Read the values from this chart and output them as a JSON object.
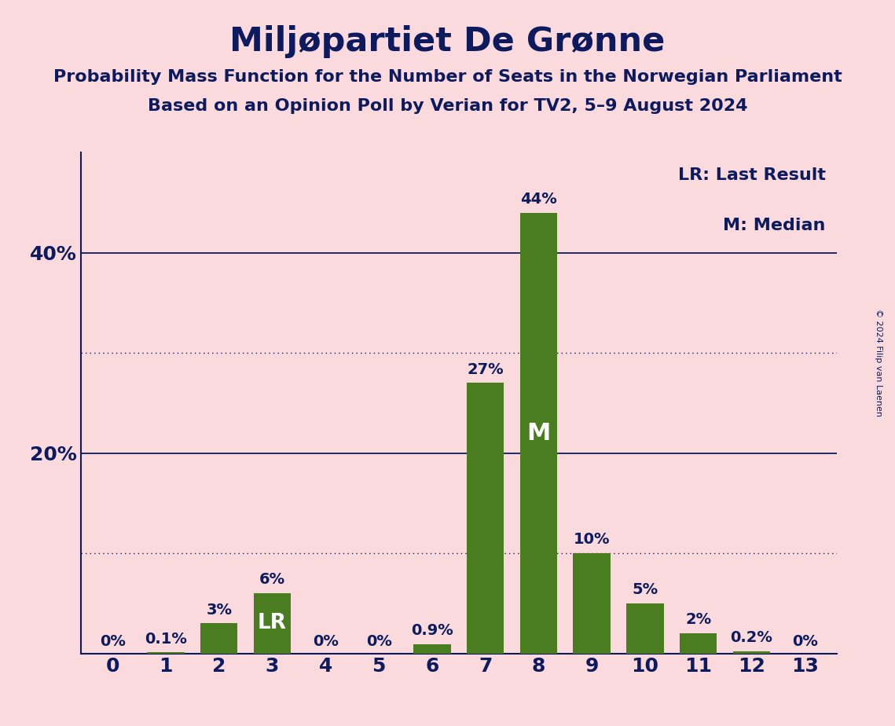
{
  "title": "Miljøpartiet De Grønne",
  "subtitle1": "Probability Mass Function for the Number of Seats in the Norwegian Parliament",
  "subtitle2": "Based on an Opinion Poll by Verian for TV2, 5–9 August 2024",
  "copyright": "© 2024 Filip van Laenen",
  "categories": [
    0,
    1,
    2,
    3,
    4,
    5,
    6,
    7,
    8,
    9,
    10,
    11,
    12,
    13
  ],
  "values": [
    0.0,
    0.1,
    3.0,
    6.0,
    0.0,
    0.0,
    0.9,
    27.0,
    44.0,
    10.0,
    5.0,
    2.0,
    0.2,
    0.0
  ],
  "bar_color": "#4a7c20",
  "background_color": "#fadadd",
  "text_color": "#0d1b5e",
  "bar_labels": [
    "0%",
    "0.1%",
    "3%",
    "6%",
    "0%",
    "0%",
    "0.9%",
    "27%",
    "44%",
    "10%",
    "5%",
    "2%",
    "0.2%",
    "0%"
  ],
  "lr_bar": 3,
  "median_bar": 8,
  "ylim": [
    0,
    50
  ],
  "solid_gridlines": [
    20,
    40
  ],
  "dotted_gridlines": [
    10,
    30
  ],
  "ytick_positions": [
    20,
    40
  ],
  "ytick_labels": [
    "20%",
    "40%"
  ],
  "legend_lr": "LR: Last Result",
  "legend_m": "M: Median",
  "axis_color": "#0d1b5e"
}
